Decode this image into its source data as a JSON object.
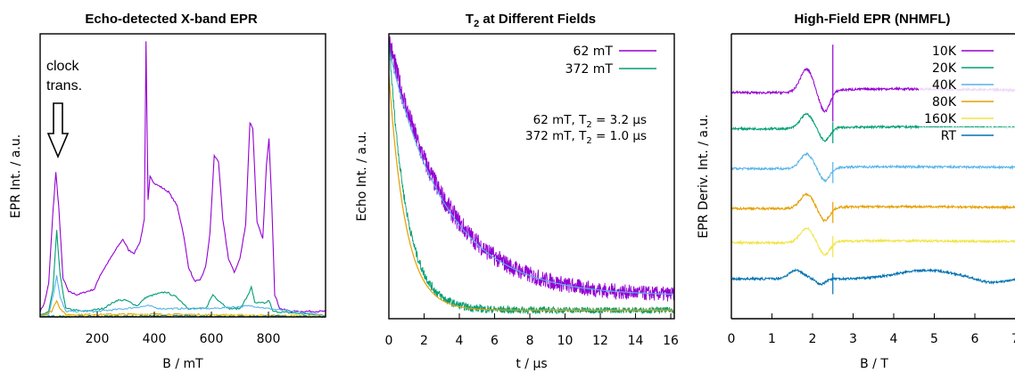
{
  "colors": {
    "purple": "#9400d3",
    "green": "#009e73",
    "lightblue": "#56b4e9",
    "orange": "#e69f00",
    "yellow": "#f0e442",
    "blue": "#0072b2",
    "fit": "#56b4e9"
  },
  "chart_data": [
    {
      "type": "line",
      "title": "Echo-detected X-band EPR",
      "xlabel": "B / mT",
      "ylabel": "EPR Int. / a.u.",
      "xlim": [
        0,
        1000
      ],
      "ylim": [
        0,
        1
      ],
      "x_ticks": [
        "200",
        "400",
        "600",
        "800"
      ],
      "grid": false,
      "annotation": {
        "lines": [
          "clock",
          "trans."
        ],
        "arrow_to_x": 55
      },
      "series": [
        {
          "color": "purple",
          "points": [
            [
              0,
              0.02
            ],
            [
              15,
              0.05
            ],
            [
              30,
              0.12
            ],
            [
              45,
              0.38
            ],
            [
              55,
              0.52
            ],
            [
              65,
              0.4
            ],
            [
              80,
              0.14
            ],
            [
              100,
              0.09
            ],
            [
              130,
              0.08
            ],
            [
              160,
              0.09
            ],
            [
              190,
              0.1
            ],
            [
              210,
              0.15
            ],
            [
              240,
              0.2
            ],
            [
              270,
              0.25
            ],
            [
              290,
              0.28
            ],
            [
              310,
              0.24
            ],
            [
              330,
              0.23
            ],
            [
              350,
              0.27
            ],
            [
              365,
              0.35
            ],
            [
              371,
              0.99
            ],
            [
              378,
              0.42
            ],
            [
              385,
              0.51
            ],
            [
              400,
              0.48
            ],
            [
              420,
              0.47
            ],
            [
              450,
              0.45
            ],
            [
              480,
              0.4
            ],
            [
              500,
              0.31
            ],
            [
              520,
              0.18
            ],
            [
              540,
              0.13
            ],
            [
              560,
              0.13
            ],
            [
              580,
              0.18
            ],
            [
              595,
              0.3
            ],
            [
              610,
              0.58
            ],
            [
              625,
              0.56
            ],
            [
              640,
              0.35
            ],
            [
              660,
              0.21
            ],
            [
              680,
              0.16
            ],
            [
              700,
              0.21
            ],
            [
              720,
              0.33
            ],
            [
              735,
              0.7
            ],
            [
              745,
              0.68
            ],
            [
              760,
              0.34
            ],
            [
              780,
              0.28
            ],
            [
              793,
              0.55
            ],
            [
              802,
              0.64
            ],
            [
              812,
              0.4
            ],
            [
              822,
              0.08
            ],
            [
              840,
              0.03
            ],
            [
              880,
              0.02
            ],
            [
              1000,
              0.02
            ]
          ]
        },
        {
          "color": "green",
          "points": [
            [
              0,
              0.005
            ],
            [
              30,
              0.02
            ],
            [
              45,
              0.1
            ],
            [
              58,
              0.31
            ],
            [
              70,
              0.15
            ],
            [
              90,
              0.03
            ],
            [
              150,
              0.02
            ],
            [
              220,
              0.03
            ],
            [
              270,
              0.06
            ],
            [
              300,
              0.06
            ],
            [
              340,
              0.04
            ],
            [
              370,
              0.07
            ],
            [
              400,
              0.08
            ],
            [
              440,
              0.09
            ],
            [
              480,
              0.07
            ],
            [
              520,
              0.03
            ],
            [
              580,
              0.03
            ],
            [
              605,
              0.08
            ],
            [
              625,
              0.06
            ],
            [
              660,
              0.03
            ],
            [
              700,
              0.03
            ],
            [
              730,
              0.08
            ],
            [
              740,
              0.11
            ],
            [
              752,
              0.05
            ],
            [
              790,
              0.05
            ],
            [
              802,
              0.06
            ],
            [
              815,
              0.02
            ],
            [
              1000,
              0.005
            ]
          ]
        },
        {
          "color": "lightblue",
          "points": [
            [
              0,
              0.005
            ],
            [
              30,
              0.01
            ],
            [
              48,
              0.09
            ],
            [
              58,
              0.15
            ],
            [
              70,
              0.07
            ],
            [
              90,
              0.02
            ],
            [
              200,
              0.02
            ],
            [
              300,
              0.03
            ],
            [
              380,
              0.04
            ],
            [
              420,
              0.03
            ],
            [
              600,
              0.03
            ],
            [
              740,
              0.04
            ],
            [
              800,
              0.03
            ],
            [
              1000,
              0.005
            ]
          ]
        },
        {
          "color": "orange",
          "points": [
            [
              0,
              0.003
            ],
            [
              40,
              0.02
            ],
            [
              58,
              0.06
            ],
            [
              70,
              0.03
            ],
            [
              90,
              0.008
            ],
            [
              400,
              0.01
            ],
            [
              1000,
              0.003
            ]
          ]
        },
        {
          "color": "yellow",
          "points": [
            [
              0,
              0.002
            ],
            [
              200,
              0.005
            ],
            [
              600,
              0.006
            ],
            [
              1000,
              0.002
            ]
          ]
        },
        {
          "color": "blue",
          "points": [
            [
              0,
              0.001
            ],
            [
              500,
              0.003
            ],
            [
              1000,
              0.001
            ]
          ]
        }
      ]
    },
    {
      "type": "line",
      "title_main": "T",
      "title_sub": "2",
      "title_rest": " at Different Fields",
      "xlabel": "t / µs",
      "ylabel": "Echo Int. / a.u.",
      "xlim": [
        0,
        16.2
      ],
      "ylim": [
        0,
        1
      ],
      "x_ticks": [
        "0",
        "2",
        "4",
        "6",
        "8",
        "10",
        "12",
        "14",
        "16"
      ],
      "grid": false,
      "legend_position": "top-right",
      "series": [
        {
          "name": "62 mT",
          "color": "purple",
          "t2": 3.2,
          "baseline": 0.08
        },
        {
          "name": "372 mT",
          "color": "green",
          "t2": 1.0,
          "baseline": 0.03
        }
      ],
      "annotation_lines": [
        {
          "pre": "62 mT, T",
          "sub": "2",
          "post": " = 3.2 µs"
        },
        {
          "pre": "372 mT, T",
          "sub": "2",
          "post": " = 1.0 µs"
        }
      ]
    },
    {
      "type": "line",
      "title": "High-Field EPR (NHMFL)",
      "xlabel": "B / T",
      "ylabel": "EPR Deriv. Int. / a.u.",
      "xlim": [
        0,
        7
      ],
      "ylim": [
        0,
        1
      ],
      "x_ticks": [
        "0",
        "1",
        "2",
        "3",
        "4",
        "5",
        "6",
        "7"
      ],
      "grid": false,
      "legend_position": "top-right",
      "series": [
        {
          "name": "10K",
          "color": "purple",
          "offset": 0.8
        },
        {
          "name": "20K",
          "color": "green",
          "offset": 0.67
        },
        {
          "name": "40K",
          "color": "lightblue",
          "offset": 0.53
        },
        {
          "name": "80K",
          "color": "orange",
          "offset": 0.39
        },
        {
          "name": "160K",
          "color": "yellow",
          "offset": 0.27
        },
        {
          "name": "RT",
          "color": "blue",
          "offset": 0.14
        }
      ]
    }
  ]
}
